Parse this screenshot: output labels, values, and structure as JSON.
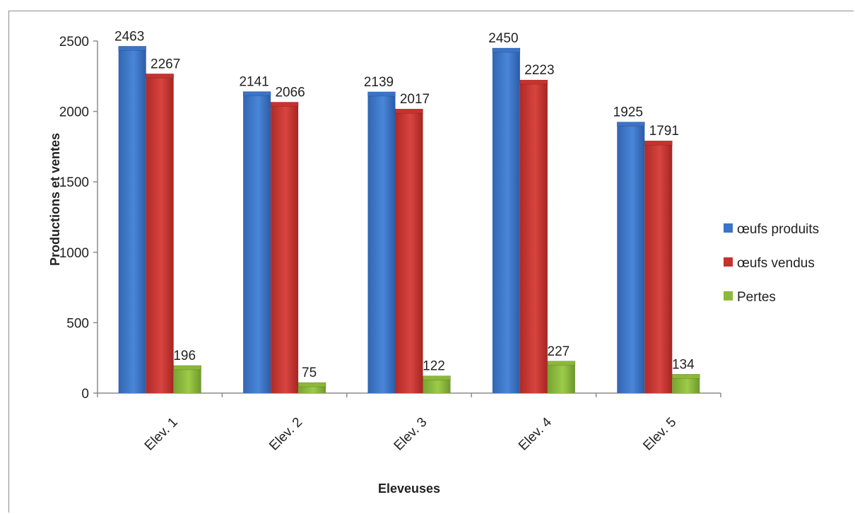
{
  "chart_data": {
    "type": "bar",
    "title": "",
    "xlabel": "Eleveuses",
    "ylabel": "Productions et ventes",
    "ylim": [
      0,
      2500
    ],
    "yticks": [
      0,
      500,
      1000,
      1500,
      2000,
      2500
    ],
    "categories": [
      "Elev. 1",
      "Elev. 2",
      "Elev. 3",
      "Elev. 4",
      "Elev. 5"
    ],
    "series": [
      {
        "name": "œufs produits",
        "values": [
          2463,
          2141,
          2139,
          2450,
          1925
        ],
        "color": "#3b74c8"
      },
      {
        "name": "œufs vendus",
        "values": [
          2267,
          2066,
          2017,
          2223,
          1791
        ],
        "color": "#c8322e"
      },
      {
        "name": "Pertes",
        "values": [
          196,
          75,
          122,
          227,
          134
        ],
        "color": "#8db83a"
      }
    ],
    "legend_position": "right",
    "grid": false
  }
}
